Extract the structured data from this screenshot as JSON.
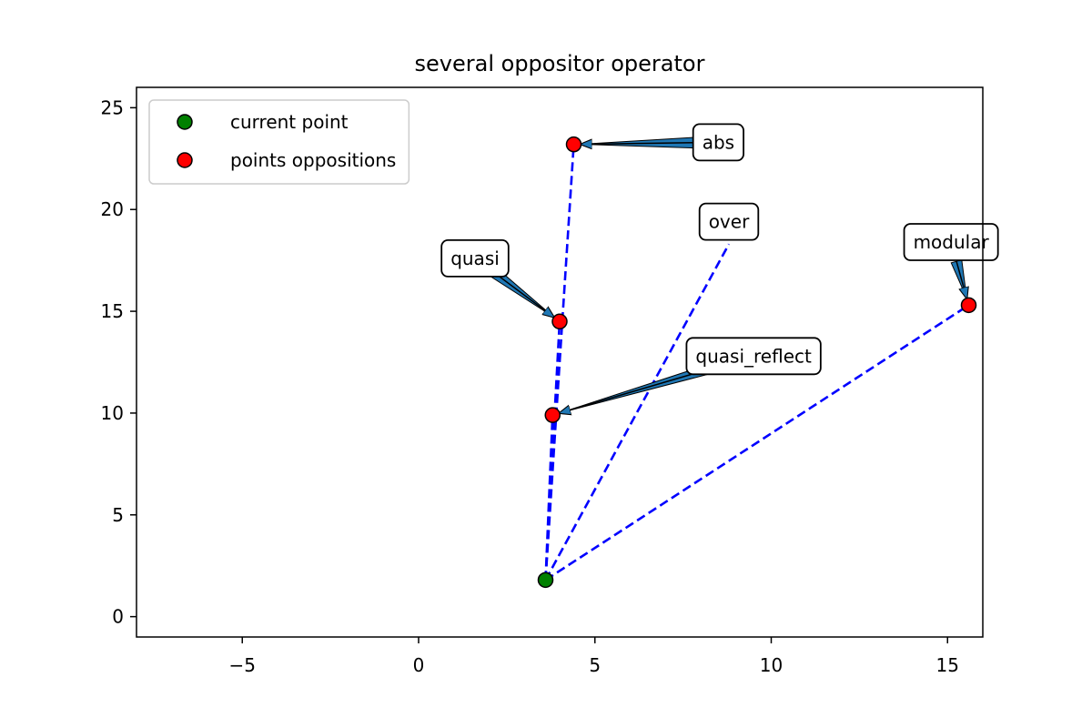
{
  "chart_data": {
    "type": "scatter",
    "title": "several oppositor operator",
    "xlabel": "",
    "ylabel": "",
    "xlim": [
      -8.0,
      16.0
    ],
    "ylim": [
      -1.0,
      26.0
    ],
    "xticks": [
      -5,
      0,
      5,
      10,
      15
    ],
    "yticks": [
      0,
      5,
      10,
      15,
      20,
      25
    ],
    "xtick_labels": [
      "−5",
      "0",
      "5",
      "10",
      "15"
    ],
    "ytick_labels": [
      "0",
      "5",
      "10",
      "15",
      "20",
      "25"
    ],
    "grid": false,
    "legend": {
      "placement": "upper-left",
      "entries": [
        {
          "label": "current point",
          "color": "#008000"
        },
        {
          "label": "points oppositions",
          "color": "#ff0000"
        }
      ]
    },
    "series": [
      {
        "name": "current point",
        "color": "#008000",
        "points": [
          {
            "x": 3.6,
            "y": 1.8
          }
        ]
      },
      {
        "name": "points oppositions",
        "color": "#ff0000",
        "points": [
          {
            "x": 4.4,
            "y": 23.2
          },
          {
            "x": 4.0,
            "y": 14.5
          },
          {
            "x": 3.8,
            "y": 9.9
          },
          {
            "x": 15.6,
            "y": 15.3
          }
        ]
      }
    ],
    "lines": [
      {
        "from": [
          3.6,
          1.8
        ],
        "to": [
          4.4,
          23.2
        ]
      },
      {
        "from": [
          3.6,
          1.8
        ],
        "to": [
          4.0,
          14.5
        ]
      },
      {
        "from": [
          3.6,
          1.8
        ],
        "to": [
          3.8,
          9.9
        ]
      },
      {
        "from": [
          3.6,
          1.8
        ],
        "to": [
          15.6,
          15.3
        ]
      },
      {
        "from": [
          3.6,
          1.8
        ],
        "to": [
          8.8,
          18.3
        ]
      }
    ],
    "line_color": "#0000ff",
    "arrow_color": "#1f77b4",
    "annotations": [
      {
        "text": "abs",
        "point": [
          4.4,
          23.2
        ],
        "text_at": [
          8.5,
          23.3
        ],
        "arrow": true
      },
      {
        "text": "over",
        "point": [
          8.8,
          18.3
        ],
        "text_at": [
          8.8,
          19.4
        ],
        "arrow": false
      },
      {
        "text": "modular",
        "point": [
          15.6,
          15.3
        ],
        "text_at": [
          15.1,
          18.4
        ],
        "arrow": true
      },
      {
        "text": "quasi",
        "point": [
          4.0,
          14.5
        ],
        "text_at": [
          1.6,
          17.6
        ],
        "arrow": true
      },
      {
        "text": "quasi_reflect",
        "point": [
          3.8,
          9.9
        ],
        "text_at": [
          9.5,
          12.8
        ],
        "arrow": true
      }
    ]
  }
}
